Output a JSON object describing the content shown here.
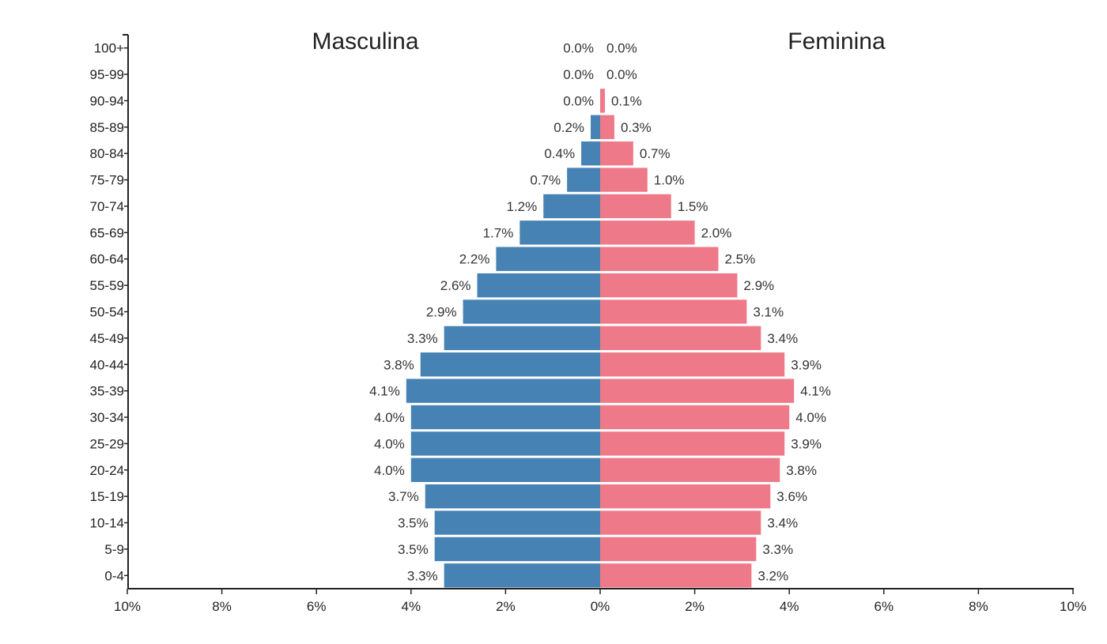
{
  "chart_data": {
    "type": "bar",
    "orientation": "horizontal-population-pyramid",
    "categories": [
      "100+",
      "95-99",
      "90-94",
      "85-89",
      "80-84",
      "75-79",
      "70-74",
      "65-69",
      "60-64",
      "55-59",
      "50-54",
      "45-49",
      "40-44",
      "35-39",
      "30-34",
      "25-29",
      "20-24",
      "15-19",
      "10-14",
      "5-9",
      "0-4"
    ],
    "series": [
      {
        "name": "Masculina",
        "color": "#4682b4",
        "values": [
          0.0,
          0.0,
          0.0,
          0.2,
          0.4,
          0.7,
          1.2,
          1.7,
          2.2,
          2.6,
          2.9,
          3.3,
          3.8,
          4.1,
          4.0,
          4.0,
          4.0,
          3.7,
          3.5,
          3.5,
          3.3
        ],
        "labels": [
          "0.0%",
          "0.0%",
          "0.0%",
          "0.2%",
          "0.4%",
          "0.7%",
          "1.2%",
          "1.7%",
          "2.2%",
          "2.6%",
          "2.9%",
          "3.3%",
          "3.8%",
          "4.1%",
          "4.0%",
          "4.0%",
          "4.0%",
          "3.7%",
          "3.5%",
          "3.5%",
          "3.3%"
        ]
      },
      {
        "name": "Feminina",
        "color": "#ee7989",
        "values": [
          0.0,
          0.0,
          0.1,
          0.3,
          0.7,
          1.0,
          1.5,
          2.0,
          2.5,
          2.9,
          3.1,
          3.4,
          3.9,
          4.1,
          4.0,
          3.9,
          3.8,
          3.6,
          3.4,
          3.3,
          3.2
        ],
        "labels": [
          "0.0%",
          "0.0%",
          "0.1%",
          "0.3%",
          "0.7%",
          "1.0%",
          "1.5%",
          "2.0%",
          "2.5%",
          "2.9%",
          "3.1%",
          "3.4%",
          "3.9%",
          "4.1%",
          "4.0%",
          "3.9%",
          "3.8%",
          "3.6%",
          "3.4%",
          "3.3%",
          "3.2%"
        ]
      }
    ],
    "xlim": [
      -10,
      10
    ],
    "x_ticks": [
      -10,
      -8,
      -6,
      -4,
      -2,
      0,
      2,
      4,
      6,
      8,
      10
    ],
    "x_tick_labels": [
      "10%",
      "8%",
      "6%",
      "4%",
      "2%",
      "0%",
      "2%",
      "4%",
      "6%",
      "8%",
      "10%"
    ],
    "grid": false,
    "legend": "none",
    "axis_color": "#222222"
  }
}
